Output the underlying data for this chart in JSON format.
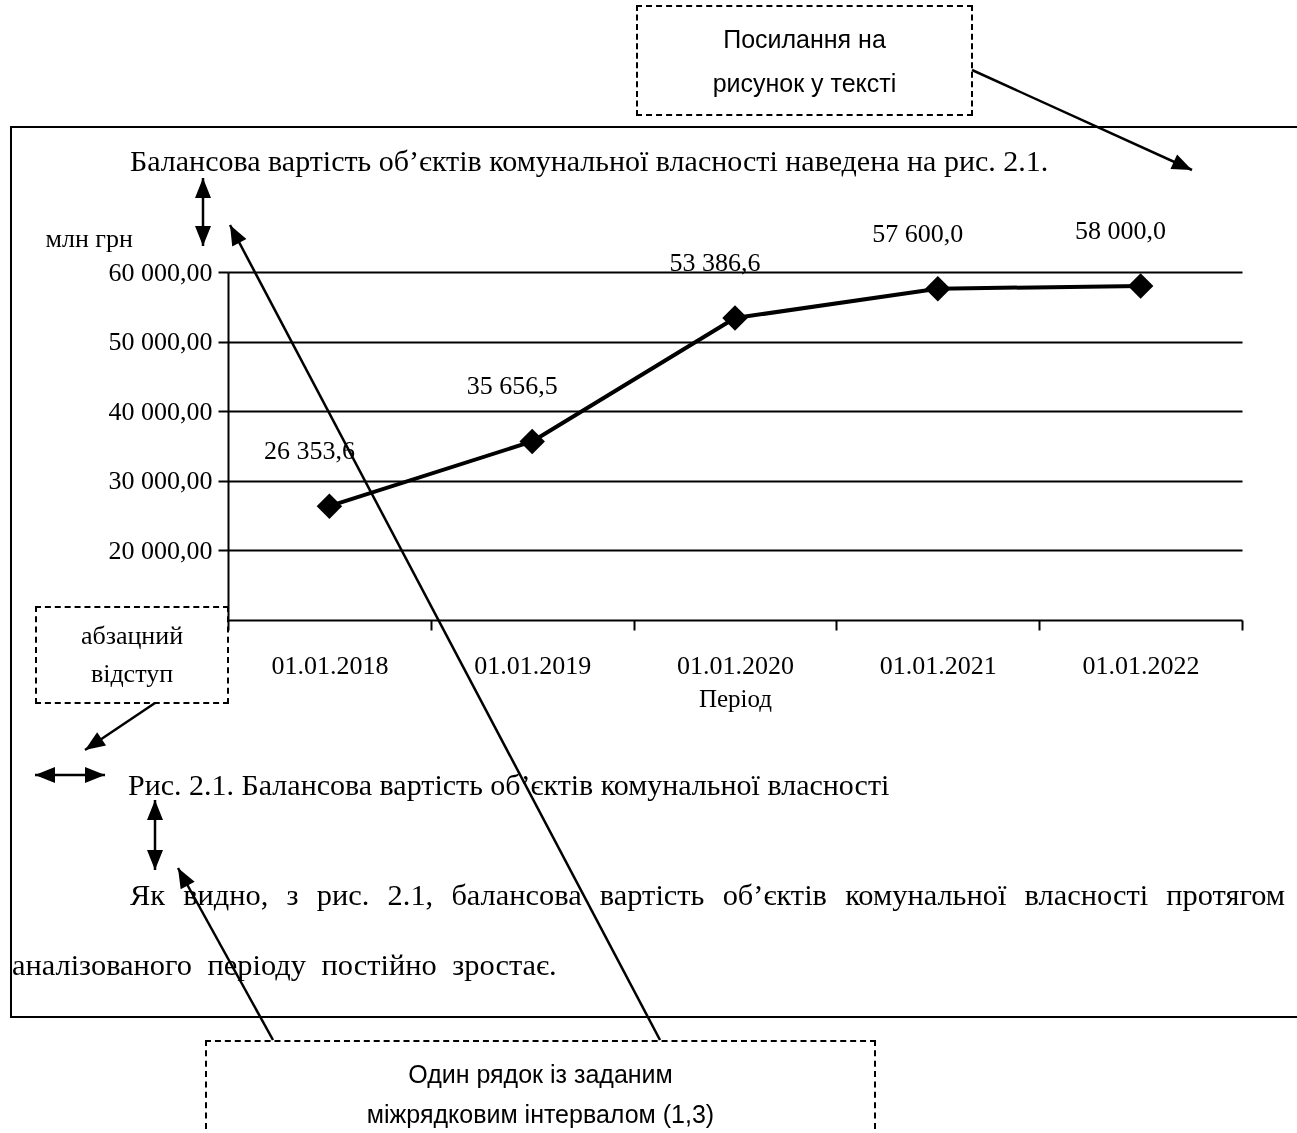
{
  "chart_data": {
    "type": "line",
    "title": "Рис. 2.1. Балансова вартість об’єктів комунальної власності",
    "xlabel": "Період",
    "ylabel": "млн грн",
    "annotations": [
      "Посилання на рисунок у тексті",
      "Балансова вартість об’єктів комунальної власності наведена на рис. 2.1.",
      "абзацний відступ",
      "Як видно, з рис. 2.1, балансова вартість об’єктів комунальної власності протягом аналізованого періоду постійно зростає.",
      "Один рядок із заданим міжрядковим інтервалом (1,3)"
    ],
    "categories": [
      "01.01.2018",
      "01.01.2019",
      "01.01.2020",
      "01.01.2021",
      "01.01.2022"
    ],
    "values": [
      26353.6,
      35656.5,
      53386.6,
      57600.0,
      58000.0
    ],
    "value_labels": [
      "26 353,6",
      "35 656,5",
      "53 386,6",
      "57 600,0",
      "58 000,0"
    ],
    "color": "#000000",
    "ylim": [
      10000,
      60000
    ],
    "yticks": [
      {
        "value": 20000,
        "label": "20 000,00"
      },
      {
        "value": 30000,
        "label": "30 000,00"
      },
      {
        "value": 40000,
        "label": "40 000,00"
      },
      {
        "value": 50000,
        "label": "50 000,00"
      },
      {
        "value": 60000,
        "label": "60 000,00"
      }
    ],
    "grid": "y",
    "marker": "diamond",
    "line_style": "solid"
  }
}
